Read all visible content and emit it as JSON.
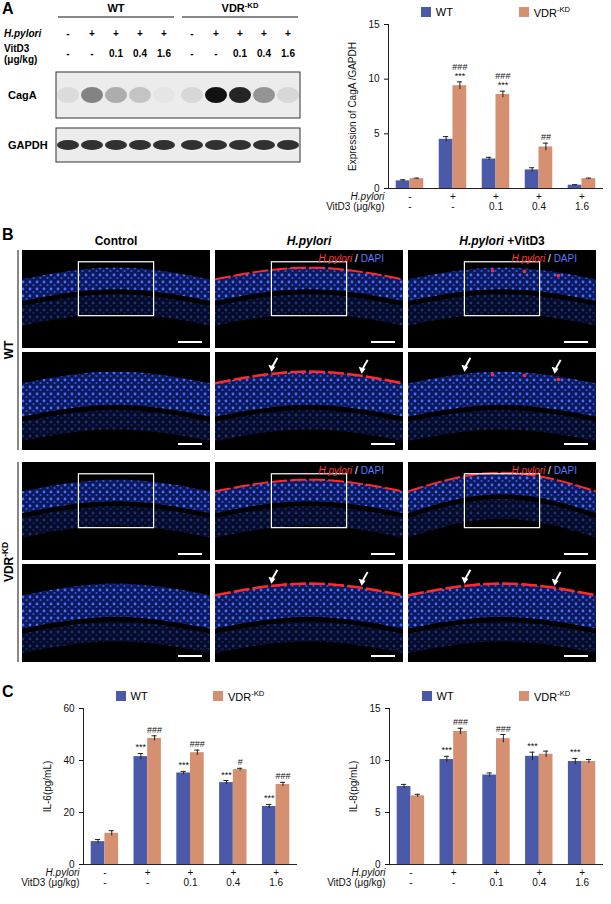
{
  "panel_labels": [
    "A",
    "B",
    "C"
  ],
  "blot": {
    "groups": [
      "WT",
      "VDR-KD"
    ],
    "rows": [
      {
        "label": "H.pylori",
        "values": [
          "-",
          "+",
          "+",
          "+",
          "+",
          "-",
          "+",
          "+",
          "+",
          "+"
        ]
      },
      {
        "label": "VitD3 (μg/kg)",
        "values": [
          "-",
          "-",
          "0.1",
          "0.4",
          "1.6",
          "-",
          "-",
          "0.1",
          "0.4",
          "1.6"
        ]
      }
    ],
    "bands": [
      "CagA",
      "GAPDH"
    ]
  },
  "images": {
    "columns": [
      "Control",
      "H.pylori",
      "H.pylori +VitD3"
    ],
    "rows": [
      "WT",
      "VDR-KD"
    ],
    "stain_label": [
      {
        "text": "H.pylori",
        "color": "#ff3a3a"
      },
      {
        "text": " / ",
        "color": "#ffffff"
      },
      {
        "text": "DAPI",
        "color": "#5a78ff"
      }
    ]
  },
  "chart_data": [
    {
      "type": "bar",
      "ylabel": "Expression of CagA /GAPDH",
      "category_rows": [
        "H.pylori",
        "VitD3 (μg/kg)"
      ],
      "categories": [
        [
          "-",
          "-"
        ],
        [
          "+",
          "-"
        ],
        [
          "+",
          "0.1"
        ],
        [
          "+",
          "0.4"
        ],
        [
          "+",
          "1.6"
        ]
      ],
      "ylim": [
        0,
        15
      ],
      "yticks": [
        0,
        5,
        10,
        15
      ],
      "legend": "top",
      "series": [
        {
          "name": "WT",
          "color": "#4a5aa8",
          "values": [
            0.7,
            4.5,
            2.7,
            1.7,
            0.3
          ],
          "errors": [
            0.1,
            0.25,
            0.15,
            0.2,
            0.05
          ]
        },
        {
          "name": "VDR-KD",
          "color": "#d49070",
          "values": [
            0.9,
            9.4,
            8.6,
            3.8,
            0.9
          ],
          "errors": [
            0.05,
            0.35,
            0.3,
            0.35,
            0.05
          ],
          "significance": [
            null,
            [
              "###",
              "***"
            ],
            [
              "###",
              "***"
            ],
            [
              "##"
            ],
            null
          ]
        }
      ]
    },
    {
      "type": "bar",
      "ylabel": "IL-6(pg/mL)",
      "category_rows": [
        "H.pylori",
        "VitD3 (μg/kg)"
      ],
      "categories": [
        [
          "-",
          "-"
        ],
        [
          "+",
          "-"
        ],
        [
          "+",
          "0.1"
        ],
        [
          "+",
          "0.4"
        ],
        [
          "+",
          "1.6"
        ]
      ],
      "ylim": [
        0,
        60
      ],
      "yticks": [
        0,
        20,
        40,
        60
      ],
      "legend": "top",
      "series": [
        {
          "name": "WT",
          "color": "#4a5aa8",
          "values": [
            8.8,
            41.5,
            35.2,
            31.5,
            22.3
          ],
          "errors": [
            0.8,
            1.2,
            0.6,
            0.8,
            0.8
          ],
          "significance": [
            null,
            [
              "***"
            ],
            [
              "***"
            ],
            [
              "***"
            ],
            [
              "***"
            ]
          ]
        },
        {
          "name": "VDR-KD",
          "color": "#d49070",
          "values": [
            12,
            48.5,
            43,
            36.5,
            30.8
          ],
          "errors": [
            1,
            1,
            1,
            0.5,
            0.8
          ],
          "significance": [
            null,
            [
              "###"
            ],
            [
              "###"
            ],
            [
              "#"
            ],
            [
              "###"
            ]
          ]
        }
      ]
    },
    {
      "type": "bar",
      "ylabel": "IL-8(pg/mL)",
      "category_rows": [
        "H.pylori",
        "VitD3 (μg/kg)"
      ],
      "categories": [
        [
          "-",
          "-"
        ],
        [
          "+",
          "-"
        ],
        [
          "+",
          "0.1"
        ],
        [
          "+",
          "0.4"
        ],
        [
          "+",
          "1.6"
        ]
      ],
      "ylim": [
        0,
        15
      ],
      "yticks": [
        0,
        5,
        10,
        15
      ],
      "legend": "top",
      "series": [
        {
          "name": "WT",
          "color": "#4a5aa8",
          "values": [
            7.5,
            10.1,
            8.6,
            10.4,
            9.9
          ],
          "errors": [
            0.2,
            0.3,
            0.2,
            0.4,
            0.3
          ],
          "significance": [
            null,
            [
              "***"
            ],
            null,
            [
              "***"
            ],
            [
              "***"
            ]
          ]
        },
        {
          "name": "VDR-KD",
          "color": "#d49070",
          "values": [
            6.6,
            12.8,
            12.1,
            10.6,
            9.9
          ],
          "errors": [
            0.15,
            0.3,
            0.4,
            0.3,
            0.2
          ],
          "significance": [
            null,
            [
              "###"
            ],
            [
              "###"
            ],
            null,
            null
          ]
        }
      ]
    }
  ]
}
